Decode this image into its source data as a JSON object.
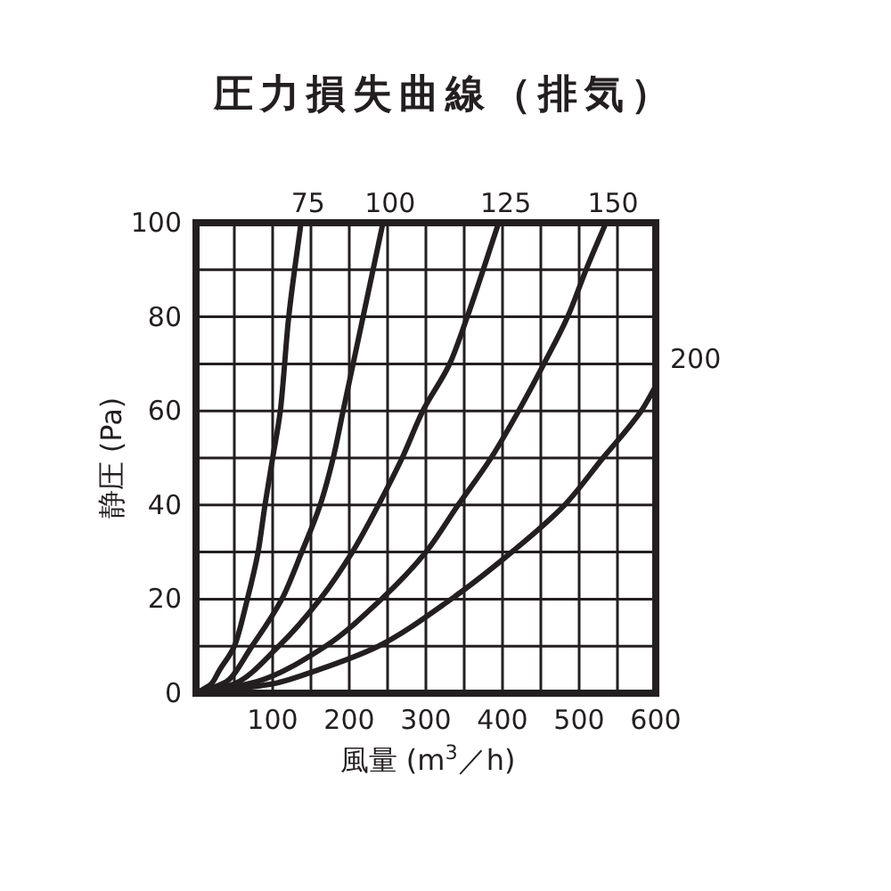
{
  "chart_data": {
    "type": "line",
    "title": "圧力損失曲線（排気）",
    "xlabel": "風量 (m$^{3}$／h)",
    "ylabel": "静圧 (Pa)",
    "xlim": [
      0,
      600
    ],
    "ylim": [
      0,
      100
    ],
    "xticks": [
      {
        "value": 0,
        "label": null
      },
      {
        "value": 50,
        "label": null
      },
      100,
      {
        "value": 150,
        "label": null
      },
      200,
      {
        "value": 250,
        "label": null
      },
      300,
      {
        "value": 350,
        "label": null
      },
      400,
      {
        "value": 450,
        "label": null
      },
      500,
      {
        "value": 550,
        "label": null
      },
      600
    ],
    "yticks": [
      0,
      {
        "value": 10,
        "label": null
      },
      20,
      {
        "value": 30,
        "label": null
      },
      40,
      {
        "value": 50,
        "label": null
      },
      60,
      {
        "value": 70,
        "label": null
      },
      80,
      {
        "value": 90,
        "label": null
      },
      100
    ],
    "grid": true,
    "marker": "none",
    "line_style": "solid",
    "series": [
      {
        "name": "75",
        "color": "#231f20",
        "x": [
          0,
          20,
          31,
          50,
          67,
          81,
          90,
          100,
          110,
          121,
          137
        ],
        "values": [
          0,
          2,
          5,
          10,
          20,
          30,
          40,
          50,
          60,
          80,
          100
        ]
      },
      {
        "name": "100",
        "color": "#231f20",
        "x": [
          0,
          40,
          73,
          112,
          138,
          162,
          179,
          192,
          218,
          244
        ],
        "values": [
          0,
          2.5,
          10,
          20,
          30,
          40,
          50,
          60,
          80,
          100
        ]
      },
      {
        "name": "125",
        "color": "#231f20",
        "x": [
          0,
          50,
          108,
          162,
          204,
          238,
          269,
          296,
          331,
          354,
          395
        ],
        "values": [
          0,
          2,
          10,
          20,
          30,
          40,
          50,
          60,
          70,
          80,
          100
        ]
      },
      {
        "name": "150",
        "color": "#231f20",
        "x": [
          0,
          80,
          169,
          242,
          300,
          342,
          385,
          421,
          454,
          485,
          509,
          535
        ],
        "values": [
          0,
          2.5,
          10,
          20,
          30,
          40,
          50,
          60,
          70,
          80,
          90,
          100
        ]
      },
      {
        "name": "200",
        "color": "#231f20",
        "x": [
          0,
          100,
          160,
          238,
          333,
          412,
          481,
          531,
          581,
          600
        ],
        "values": [
          0,
          2,
          5,
          10,
          20,
          30,
          40,
          50,
          60,
          65.3
        ]
      }
    ]
  }
}
